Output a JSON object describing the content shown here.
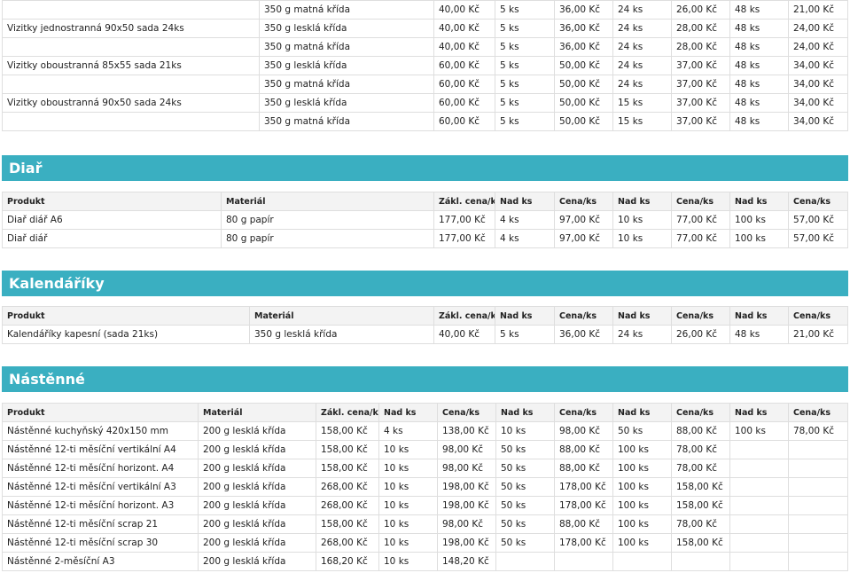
{
  "top_rows": [
    [
      "",
      "350 g matná křída",
      "40,00 Kč",
      "5 ks",
      "36,00 Kč",
      "24 ks",
      "26,00 Kč",
      "48 ks",
      "21,00 Kč"
    ],
    [
      "Vizitky jednostranná 90x50 sada 24ks",
      "350 g lesklá křída",
      "40,00 Kč",
      "5 ks",
      "36,00 Kč",
      "24 ks",
      "28,00 Kč",
      "48 ks",
      "24,00 Kč"
    ],
    [
      "",
      "350 g matná křída",
      "40,00 Kč",
      "5 ks",
      "36,00 Kč",
      "24 ks",
      "28,00 Kč",
      "48 ks",
      "24,00 Kč"
    ],
    [
      "Vizitky oboustranná 85x55 sada 21ks",
      "350 g lesklá křída",
      "60,00 Kč",
      "5 ks",
      "50,00 Kč",
      "24 ks",
      "37,00 Kč",
      "48 ks",
      "34,00 Kč"
    ],
    [
      "",
      "350 g matná křída",
      "60,00 Kč",
      "5 ks",
      "50,00 Kč",
      "24 ks",
      "37,00 Kč",
      "48 ks",
      "34,00 Kč"
    ],
    [
      "Vizitky oboustranná 90x50 sada 24ks",
      "350 g lesklá křída",
      "60,00 Kč",
      "5 ks",
      "50,00 Kč",
      "15 ks",
      "37,00 Kč",
      "48 ks",
      "34,00 Kč"
    ],
    [
      "",
      "350 g matná křída",
      "60,00 Kč",
      "5 ks",
      "50,00 Kč",
      "15 ks",
      "37,00 Kč",
      "48 ks",
      "34,00 Kč"
    ]
  ],
  "diar": {
    "title": "Diař",
    "headers": [
      "Produkt",
      "Materiál",
      "Zákl. cena/ks",
      "Nad ks",
      "Cena/ks",
      "Nad ks",
      "Cena/ks",
      "Nad ks",
      "Cena/ks"
    ],
    "rows": [
      [
        "Diař diář A6",
        "80 g papír",
        "177,00 Kč",
        "4 ks",
        "97,00 Kč",
        "10 ks",
        "77,00 Kč",
        "100 ks",
        "57,00 Kč"
      ],
      [
        "Diař diář",
        "80 g papír",
        "177,00 Kč",
        "4 ks",
        "97,00 Kč",
        "10 ks",
        "77,00 Kč",
        "100 ks",
        "57,00 Kč"
      ]
    ]
  },
  "kalendariky": {
    "title": "Kalendáříky",
    "headers": [
      "Produkt",
      "Materiál",
      "Zákl. cena/ks",
      "Nad ks",
      "Cena/ks",
      "Nad ks",
      "Cena/ks",
      "Nad ks",
      "Cena/ks"
    ],
    "rows": [
      [
        "Kalendáříky kapesní (sada 21ks)",
        "350 g lesklá křída",
        "40,00 Kč",
        "5 ks",
        "36,00 Kč",
        "24 ks",
        "26,00 Kč",
        "48 ks",
        "21,00 Kč"
      ]
    ]
  },
  "nastenne": {
    "title": "Nástěnné",
    "headers": [
      "Produkt",
      "Materiál",
      "Zákl. cena/ks",
      "Nad ks",
      "Cena/ks",
      "Nad ks",
      "Cena/ks",
      "Nad ks",
      "Cena/ks",
      "Nad ks",
      "Cena/ks"
    ],
    "rows": [
      [
        "Nástěnné kuchyňský 420x150 mm",
        "200 g lesklá křída",
        "158,00 Kč",
        "4 ks",
        "138,00 Kč",
        "10 ks",
        "98,00 Kč",
        "50 ks",
        "88,00 Kč",
        "100 ks",
        "78,00 Kč"
      ],
      [
        "Nástěnné 12-ti měsíční vertikální A4",
        "200 g lesklá křída",
        "158,00 Kč",
        "10 ks",
        "98,00 Kč",
        "50 ks",
        "88,00 Kč",
        "100 ks",
        "78,00 Kč",
        "",
        ""
      ],
      [
        "Nástěnné 12-ti měsíční horizont. A4",
        "200 g lesklá křída",
        "158,00 Kč",
        "10 ks",
        "98,00 Kč",
        "50 ks",
        "88,00 Kč",
        "100 ks",
        "78,00 Kč",
        "",
        ""
      ],
      [
        "Nástěnné 12-ti měsíční vertikální A3",
        "200 g lesklá křída",
        "268,00 Kč",
        "10 ks",
        "198,00 Kč",
        "50 ks",
        "178,00 Kč",
        "100 ks",
        "158,00 Kč",
        "",
        ""
      ],
      [
        "Nástěnné 12-ti měsíční horizont. A3",
        "200 g lesklá křída",
        "268,00 Kč",
        "10 ks",
        "198,00 Kč",
        "50 ks",
        "178,00 Kč",
        "100 ks",
        "158,00 Kč",
        "",
        ""
      ],
      [
        "Nástěnné 12-ti měsíční scrap 21",
        "200 g lesklá křída",
        "158,00 Kč",
        "10 ks",
        "98,00 Kč",
        "50 ks",
        "88,00 Kč",
        "100 ks",
        "78,00 Kč",
        "",
        ""
      ],
      [
        "Nástěnné 12-ti měsíční scrap 30",
        "200 g lesklá křída",
        "268,00 Kč",
        "10 ks",
        "198,00 Kč",
        "50 ks",
        "178,00 Kč",
        "100 ks",
        "158,00 Kč",
        "",
        ""
      ],
      [
        "Nástěnné 2-měsíční A3",
        "200 g lesklá křída",
        "168,20 Kč",
        "10 ks",
        "148,20 Kč",
        "",
        "",
        "",
        "",
        "",
        ""
      ]
    ]
  }
}
